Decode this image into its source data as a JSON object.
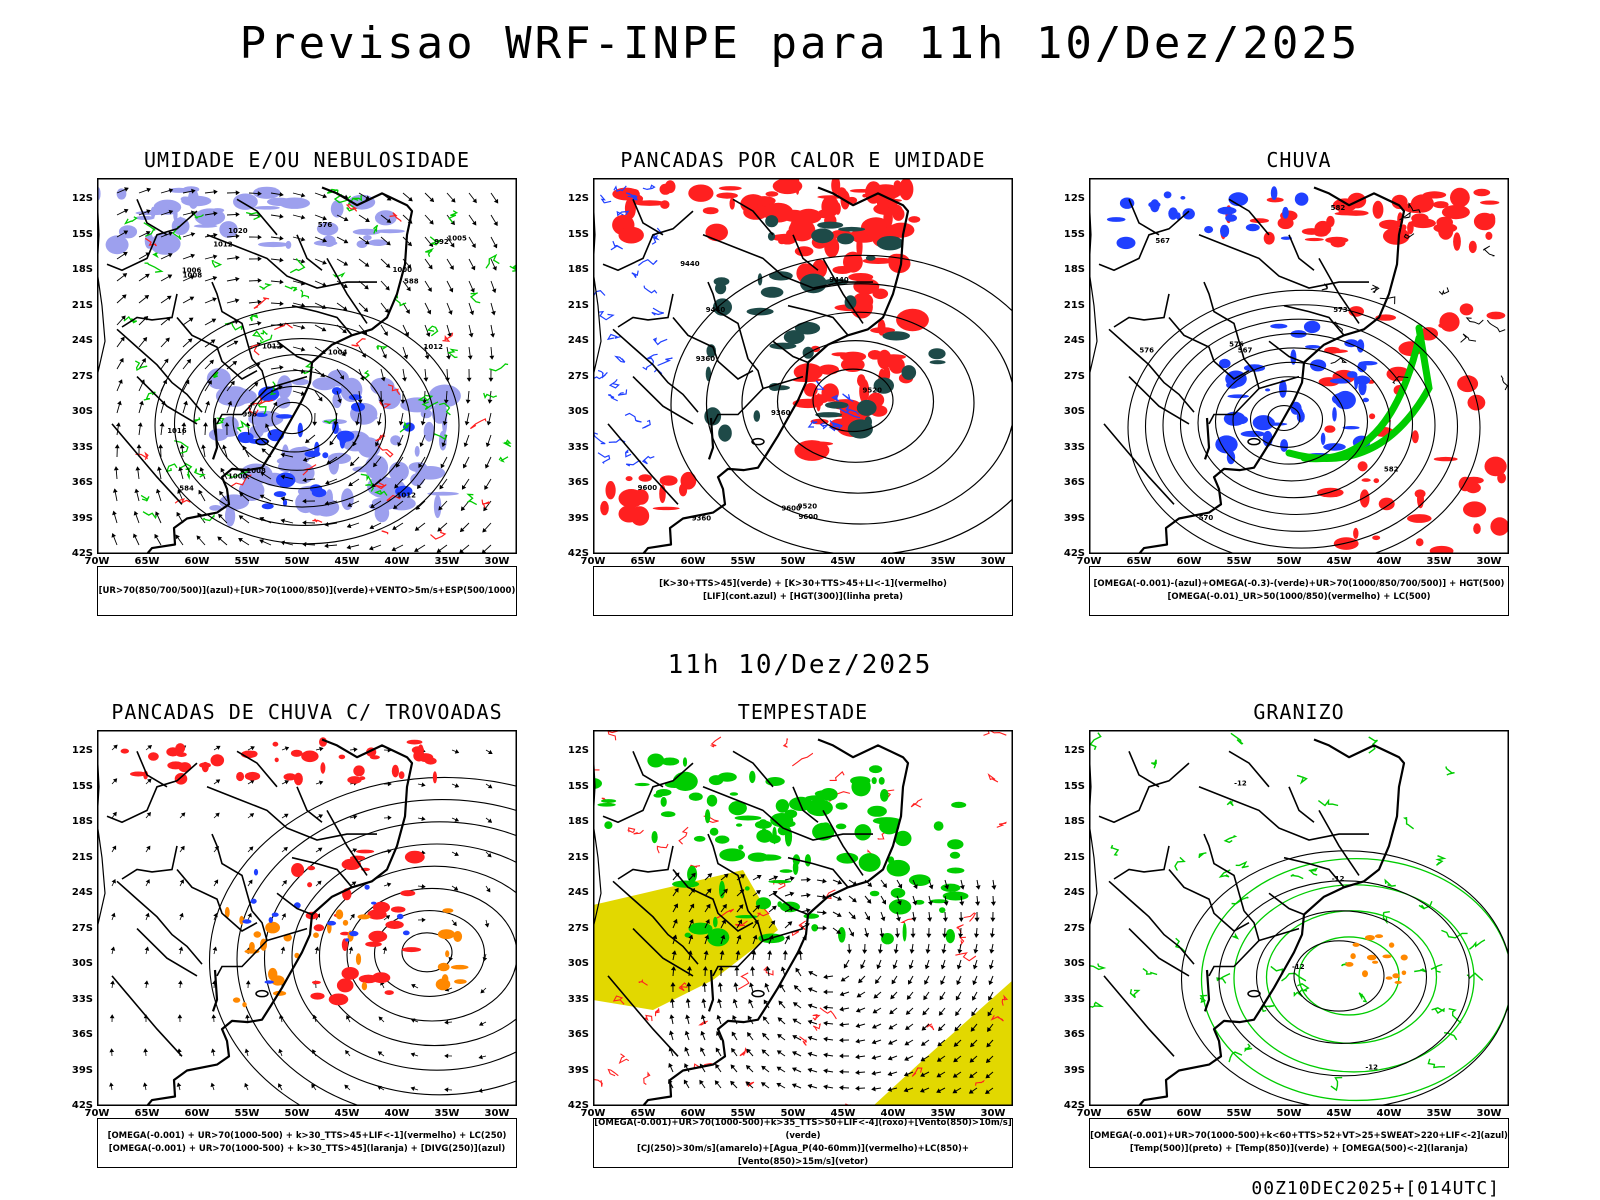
{
  "header": {
    "title": "Previsao WRF-INPE  para 11h 10/Dez/2025"
  },
  "mid": {
    "title": "11h 10/Dez/2025"
  },
  "footer": {
    "run": "00Z10DEC2025+[014UTC]"
  },
  "axes": {
    "lat": [
      "12S",
      "15S",
      "18S",
      "21S",
      "24S",
      "27S",
      "30S",
      "33S",
      "36S",
      "39S",
      "42S"
    ],
    "lon": [
      "70W",
      "65W",
      "60W",
      "55W",
      "50W",
      "45W",
      "40W",
      "35W",
      "30W"
    ]
  },
  "colors": {
    "blue": "#2040ff",
    "green": "#00cc00",
    "red": "#ff2020",
    "orange": "#ff8800",
    "yellow": "#e2d800",
    "teal": "#1e4a48",
    "lavender": "#9da0ee"
  },
  "panels": [
    {
      "title": "UMIDADE E/OU NEBULOSIDADE",
      "legend": [
        "[UR>70(850/700/500)](azul)+[UR>70(1000/850)](verde)+VENTO>5m/s+ESP(500/1000)"
      ],
      "labels": [
        "1012",
        "1012",
        "1012",
        "1012",
        "1016",
        "1008",
        "1004",
        "1000",
        "996",
        "992",
        "1000",
        "1020",
        "1006",
        "1005",
        "1008",
        "576",
        "584",
        "588"
      ]
    },
    {
      "title": "PANCADAS POR CALOR E UMIDADE",
      "legend": [
        "[K>30+TTS>45](verde) + [K>30+TTS>45+LI<-1](vermelho)",
        "[LIF](cont.azul) + [HGT(300)](linha preta)"
      ],
      "labels": [
        "9600",
        "9600",
        "9600",
        "9520",
        "9520",
        "9440",
        "9440",
        "9360",
        "9360",
        "9440",
        "9360"
      ]
    },
    {
      "title": "CHUVA",
      "legend": [
        "[OMEGA(-0.001)-(azul)+OMEGA(-0.3)-(verde)+UR>70(1000/850/700/500)] + HGT(500)",
        "[OMEGA(-0.01)_UR>50(1000/850)(vermelho) + LC(500)"
      ],
      "labels": [
        "582",
        "576",
        "573",
        "570",
        "567",
        "576",
        "582",
        "567"
      ]
    },
    {
      "title": "PANCADAS DE CHUVA C/ TROVOADAS",
      "legend": [
        "[OMEGA(-0.001) + UR>70(1000-500) + k>30_TTS>45+LIF<-1](vermelho) + LC(250)",
        "[OMEGA(-0.001) + UR>70(1000-500) + k>30_TTS>45](laranja) + [DIVG(250)](azul)"
      ],
      "labels": []
    },
    {
      "title": "TEMPESTADE",
      "legend": [
        "[OMEGA(-0.001)+UR>70(1000-500)+k>35_TTS>50+LIF<-4](roxo)+[Vento(850)>10m/s](verde)",
        "[CJ(250)>30m/s](amarelo)+[Agua_P(40-60mm)](vermelho)+LC(850)+[Vento(850)>15m/s](vetor)"
      ],
      "labels": []
    },
    {
      "title": "GRANIZO",
      "legend": [
        "[OMEGA(-0.001)+UR>70(1000-500)+k<60+TTS>52+VT>25+SWEAT>220+LIF<-2](azul)",
        "[Temp(500)](preto) + [Temp(850)](verde) + [OMEGA(500)<-2](laranja)"
      ],
      "labels": [
        "-12",
        "-12",
        "-12",
        "-12"
      ]
    }
  ]
}
